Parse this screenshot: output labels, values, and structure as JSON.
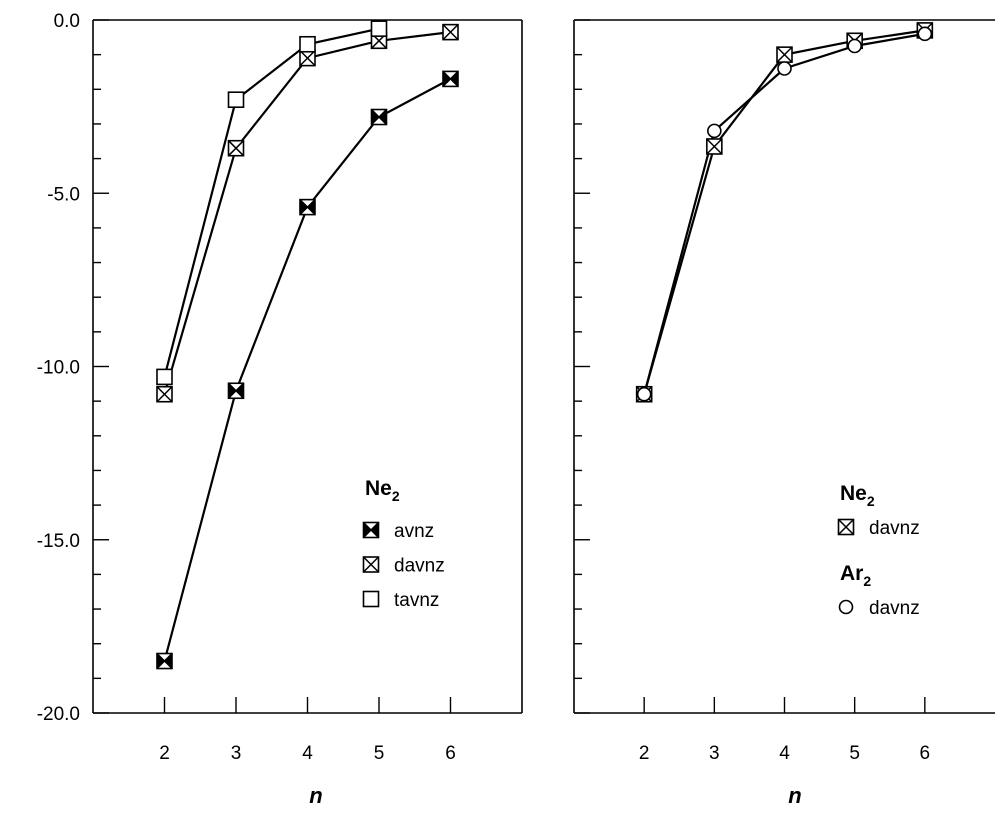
{
  "chart_data": [
    {
      "type": "line",
      "xlabel": "n",
      "ylabel": "",
      "xlim": [
        1,
        7
      ],
      "ylim": [
        -20,
        0
      ],
      "xticks": [
        "2",
        "3",
        "4",
        "5",
        "6"
      ],
      "yticks": [
        "0.0",
        "-5.0",
        "-10.0",
        "-15.0",
        "-20.0"
      ],
      "grid": false,
      "legend_position": "bottom-right",
      "legend_groups": [
        {
          "title": "Ne",
          "title_sub": "2",
          "entries": [
            "avnz",
            "davnz",
            "tavnz"
          ]
        }
      ],
      "series": [
        {
          "name": "avnz",
          "group": "Ne2",
          "marker": "boxed-x-filled",
          "x": [
            2,
            3,
            4,
            5,
            6
          ],
          "values": [
            -18.5,
            -10.7,
            -5.4,
            -2.8,
            -1.7
          ]
        },
        {
          "name": "davnz",
          "group": "Ne2",
          "marker": "boxed-x",
          "x": [
            2,
            3,
            4,
            5,
            6
          ],
          "values": [
            -10.8,
            -3.7,
            -1.1,
            -0.6,
            -0.35
          ]
        },
        {
          "name": "tavnz",
          "group": "Ne2",
          "marker": "square",
          "x": [
            2,
            3,
            4,
            5
          ],
          "values": [
            -10.3,
            -2.3,
            -0.7,
            -0.25
          ]
        }
      ]
    },
    {
      "type": "line",
      "xlabel": "n",
      "ylabel": "",
      "xlim": [
        1,
        7
      ],
      "ylim": [
        -20,
        0
      ],
      "xticks": [
        "2",
        "3",
        "4",
        "5",
        "6"
      ],
      "yticks": [],
      "grid": false,
      "legend_position": "bottom-right",
      "legend_groups": [
        {
          "title": "Ne",
          "title_sub": "2",
          "entries": [
            "davnz"
          ]
        },
        {
          "title": "Ar",
          "title_sub": "2",
          "entries": [
            "davnz"
          ]
        }
      ],
      "series": [
        {
          "name": "davnz",
          "group": "Ne2",
          "marker": "boxed-x",
          "x": [
            2,
            3,
            4,
            5,
            6
          ],
          "values": [
            -10.8,
            -3.65,
            -1.0,
            -0.6,
            -0.3
          ]
        },
        {
          "name": "davnz",
          "group": "Ar2",
          "marker": "circle",
          "x": [
            2,
            3,
            4,
            5,
            6
          ],
          "values": [
            -10.8,
            -3.2,
            -1.4,
            -0.75,
            -0.4
          ]
        }
      ]
    }
  ]
}
